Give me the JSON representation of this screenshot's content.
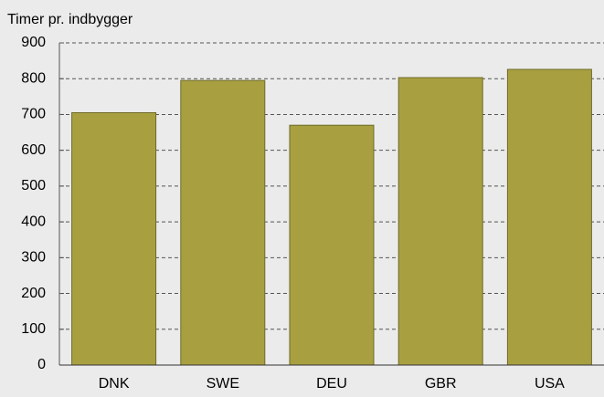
{
  "chart_data": {
    "type": "bar",
    "ylabel": "Timer pr. indbygger",
    "categories": [
      "DNK",
      "SWE",
      "DEU",
      "GBR",
      "USA"
    ],
    "values": [
      705,
      795,
      670,
      803,
      826
    ],
    "color": "#a8a040",
    "ylim": [
      0,
      900
    ],
    "yticks": [
      0,
      100,
      200,
      300,
      400,
      500,
      600,
      700,
      800,
      900
    ],
    "grid": true
  }
}
